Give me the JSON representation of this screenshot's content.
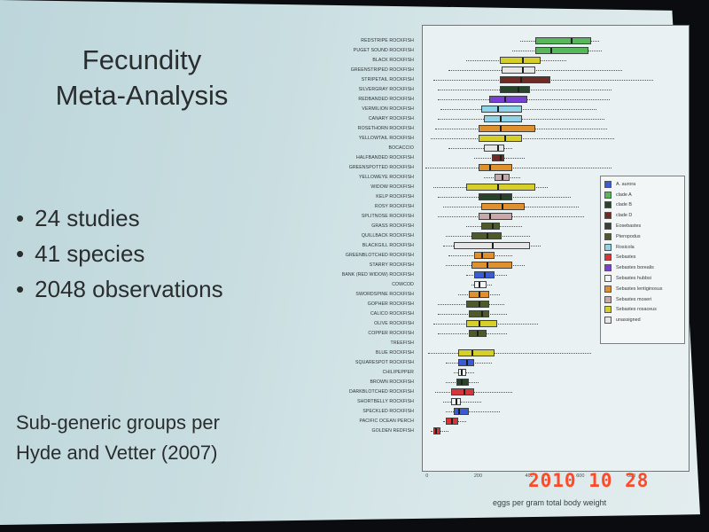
{
  "slide": {
    "title_line1": "Fecundity",
    "title_line2": "Meta-Analysis",
    "bullets": [
      "24 studies",
      "41 species",
      "2048 observations"
    ],
    "footnote_line1": "Sub-generic groups per",
    "footnote_line2": "Hyde and Vetter (2007)"
  },
  "photo_date_stamp": "2010 10 28",
  "chart_data": {
    "type": "boxplot",
    "orientation": "horizontal",
    "xlabel": "eggs per gram total body weight",
    "xlim": [
      -20,
      1020
    ],
    "xticks": [
      0,
      200,
      400,
      600,
      800
    ],
    "xtick_labels": [
      "0",
      "200",
      "400",
      "600",
      "800"
    ],
    "legend_placement": "right",
    "legend": [
      {
        "name": "A. aurora",
        "color": "#3b5bd6"
      },
      {
        "name": "clade A",
        "color": "#56b85a"
      },
      {
        "name": "clade B",
        "color": "#27432a"
      },
      {
        "name": "clade D",
        "color": "#6e2a24"
      },
      {
        "name": "Eosebastes",
        "color": "#3a3f38"
      },
      {
        "name": "Pteropodus",
        "color": "#4f5a2a"
      },
      {
        "name": "Rosicola",
        "color": "#8ed3e8"
      },
      {
        "name": "Sebastes",
        "color": "#d8353a"
      },
      {
        "name": "Sebastes borealis",
        "color": "#7a3fd6"
      },
      {
        "name": "Sebastes hubbsi",
        "color": "#f4f4f4"
      },
      {
        "name": "Sebastes lentiginosus",
        "color": "#e0902c"
      },
      {
        "name": "Sebastes moseri",
        "color": "#c8a8a8"
      },
      {
        "name": "Sebastes rosaceus",
        "color": "#d6cf2a"
      },
      {
        "name": "unassigned",
        "color": "#e6e6e6"
      }
    ],
    "series": [
      {
        "name": "REDSTRIPE ROCKFISH",
        "group": "clade A",
        "color": "#56b85a",
        "min": 360,
        "q1": 420,
        "median": 560,
        "q3": 640,
        "max": 670
      },
      {
        "name": "PUGET SOUND ROCKFISH",
        "group": "clade A",
        "color": "#56b85a",
        "min": 330,
        "q1": 420,
        "median": 480,
        "q3": 630,
        "max": 680
      },
      {
        "name": "BLACK ROCKFISH",
        "group": "Sebastes rosaceus",
        "color": "#d6cf2a",
        "min": 150,
        "q1": 280,
        "median": 370,
        "q3": 440,
        "max": 540
      },
      {
        "name": "GREENSTRIPED ROCKFISH",
        "group": "unassigned",
        "color": "#e6e6e6",
        "min": 80,
        "q1": 290,
        "median": 370,
        "q3": 420,
        "max": 760
      },
      {
        "name": "STRIPETAIL ROCKFISH",
        "group": "clade D",
        "color": "#6e2a24",
        "min": 20,
        "q1": 280,
        "median": 360,
        "q3": 480,
        "max": 880
      },
      {
        "name": "SILVERGRAY ROCKFISH",
        "group": "clade B",
        "color": "#27432a",
        "min": 40,
        "q1": 280,
        "median": 350,
        "q3": 400,
        "max": 720
      },
      {
        "name": "REDBANDED ROCKFISH",
        "group": "Sebastes borealis",
        "color": "#7a3fd6",
        "min": 40,
        "q1": 240,
        "median": 300,
        "q3": 390,
        "max": 710
      },
      {
        "name": "VERMILION ROCKFISH",
        "group": "Rosicola",
        "color": "#8ed3e8",
        "min": 50,
        "q1": 210,
        "median": 270,
        "q3": 370,
        "max": 660
      },
      {
        "name": "CANARY ROCKFISH",
        "group": "Rosicola",
        "color": "#8ed3e8",
        "min": 40,
        "q1": 220,
        "median": 280,
        "q3": 370,
        "max": 690
      },
      {
        "name": "ROSETHORN ROCKFISH",
        "group": "Sebastes lentiginosus",
        "color": "#e0902c",
        "min": 30,
        "q1": 200,
        "median": 280,
        "q3": 420,
        "max": 700
      },
      {
        "name": "YELLOWTAIL ROCKFISH",
        "group": "Sebastes rosaceus",
        "color": "#d6cf2a",
        "min": 10,
        "q1": 200,
        "median": 300,
        "q3": 370,
        "max": 730
      },
      {
        "name": "BOCACCIO",
        "group": "unassigned",
        "color": "#e6e6e6",
        "min": 80,
        "q1": 220,
        "median": 270,
        "q3": 300,
        "max": 330
      },
      {
        "name": "HALFBANDED ROCKFISH",
        "group": "clade D",
        "color": "#6e2a24",
        "min": 180,
        "q1": 250,
        "median": 280,
        "q3": 300,
        "max": 380
      },
      {
        "name": "GREENSPOTTED ROCKFISH",
        "group": "Sebastes lentiginosus",
        "color": "#e0902c",
        "min": -10,
        "q1": 200,
        "median": 240,
        "q3": 330,
        "max": 720
      },
      {
        "name": "YELLOWEYE ROCKFISH",
        "group": "Sebastes moseri",
        "color": "#c8a8a8",
        "min": 220,
        "q1": 260,
        "median": 290,
        "q3": 320,
        "max": 360
      },
      {
        "name": "WIDOW ROCKFISH",
        "group": "Sebastes rosaceus",
        "color": "#d6cf2a",
        "min": 20,
        "q1": 150,
        "median": 270,
        "q3": 420,
        "max": 470
      },
      {
        "name": "KELP ROCKFISH",
        "group": "clade B",
        "color": "#27432a",
        "min": 40,
        "q1": 200,
        "median": 280,
        "q3": 330,
        "max": 560
      },
      {
        "name": "ROSY ROCKFISH",
        "group": "Sebastes lentiginosus",
        "color": "#e0902c",
        "min": 60,
        "q1": 210,
        "median": 290,
        "q3": 380,
        "max": 590
      },
      {
        "name": "SPLITNOSE ROCKFISH",
        "group": "Sebastes moseri",
        "color": "#c8a8a8",
        "min": 40,
        "q1": 200,
        "median": 240,
        "q3": 330,
        "max": 610
      },
      {
        "name": "GRASS ROCKFISH",
        "group": "Pteropodus",
        "color": "#4f5a2a",
        "min": 150,
        "q1": 210,
        "median": 250,
        "q3": 280,
        "max": 370
      },
      {
        "name": "QUILLBACK ROCKFISH",
        "group": "Pteropodus",
        "color": "#4f5a2a",
        "min": 70,
        "q1": 170,
        "median": 230,
        "q3": 290,
        "max": 400
      },
      {
        "name": "BLACKGILL ROCKFISH",
        "group": "unassigned",
        "color": "#e6e6e6",
        "min": 60,
        "q1": 100,
        "median": 250,
        "q3": 400,
        "max": 440
      },
      {
        "name": "GREENBLOTCHED ROCKFISH",
        "group": "Sebastes lentiginosus",
        "color": "#e0902c",
        "min": 80,
        "q1": 180,
        "median": 210,
        "q3": 260,
        "max": 330
      },
      {
        "name": "STARRY ROCKFISH",
        "group": "Sebastes lentiginosus",
        "color": "#e0902c",
        "min": 70,
        "q1": 170,
        "median": 230,
        "q3": 330,
        "max": 380
      },
      {
        "name": "BANK (RED WIDOW) ROCKFISH",
        "group": "A. aurora",
        "color": "#3b5bd6",
        "min": 150,
        "q1": 180,
        "median": 220,
        "q3": 260,
        "max": 310
      },
      {
        "name": "COWCOD",
        "group": "Sebastes hubbsi",
        "color": "#f4f4f4",
        "min": 170,
        "q1": 180,
        "median": 200,
        "q3": 230,
        "max": 250
      },
      {
        "name": "SWORDSPINE ROCKFISH",
        "group": "Sebastes lentiginosus",
        "color": "#e0902c",
        "min": 120,
        "q1": 160,
        "median": 200,
        "q3": 240,
        "max": 280
      },
      {
        "name": "GOPHER ROCKFISH",
        "group": "Pteropodus",
        "color": "#4f5a2a",
        "min": 40,
        "q1": 150,
        "median": 200,
        "q3": 240,
        "max": 300
      },
      {
        "name": "CALICO ROCKFISH",
        "group": "Pteropodus",
        "color": "#4f5a2a",
        "min": 40,
        "q1": 160,
        "median": 210,
        "q3": 240,
        "max": 310
      },
      {
        "name": "OLIVE ROCKFISH",
        "group": "Sebastes rosaceus",
        "color": "#d6cf2a",
        "min": 20,
        "q1": 150,
        "median": 200,
        "q3": 270,
        "max": 430
      },
      {
        "name": "COPPER ROCKFISH",
        "group": "Pteropodus",
        "color": "#4f5a2a",
        "min": 40,
        "q1": 160,
        "median": 190,
        "q3": 230,
        "max": 310
      },
      {
        "name": "TREEFISH",
        "group": "unassigned",
        "color": "#e6e6e6",
        "min": null,
        "q1": null,
        "median": null,
        "q3": null,
        "max": null
      },
      {
        "name": "BLUE ROCKFISH",
        "group": "Sebastes rosaceus",
        "color": "#d6cf2a",
        "min": 0,
        "q1": 120,
        "median": 170,
        "q3": 260,
        "max": 640
      },
      {
        "name": "SQUARESPOT ROCKFISH",
        "group": "A. aurora",
        "color": "#3b5bd6",
        "min": 70,
        "q1": 120,
        "median": 150,
        "q3": 180,
        "max": 250
      },
      {
        "name": "CHILIPEPPER",
        "group": "Sebastes hubbsi",
        "color": "#f4f4f4",
        "min": 100,
        "q1": 120,
        "median": 130,
        "q3": 150,
        "max": 180
      },
      {
        "name": "BROWN ROCKFISH",
        "group": "clade B",
        "color": "#27432a",
        "min": 70,
        "q1": 110,
        "median": 130,
        "q3": 160,
        "max": 200
      },
      {
        "name": "DARKBLOTCHED ROCKFISH",
        "group": "Sebastes",
        "color": "#d8353a",
        "min": 30,
        "q1": 90,
        "median": 140,
        "q3": 180,
        "max": 330
      },
      {
        "name": "SHORTBELLY ROCKFISH",
        "group": "Sebastes hubbsi",
        "color": "#f4f4f4",
        "min": 60,
        "q1": 90,
        "median": 110,
        "q3": 130,
        "max": 210
      },
      {
        "name": "SPECKLED ROCKFISH",
        "group": "A. aurora",
        "color": "#3b5bd6",
        "min": 70,
        "q1": 100,
        "median": 120,
        "q3": 160,
        "max": 280
      },
      {
        "name": "PACIFIC OCEAN PERCH",
        "group": "Sebastes",
        "color": "#d8353a",
        "min": 60,
        "q1": 70,
        "median": 90,
        "q3": 120,
        "max": 150
      },
      {
        "name": "GOLDEN REDFISH",
        "group": "Sebastes",
        "color": "#d8353a",
        "min": 10,
        "q1": 20,
        "median": 30,
        "q3": 50,
        "max": 80
      }
    ]
  }
}
